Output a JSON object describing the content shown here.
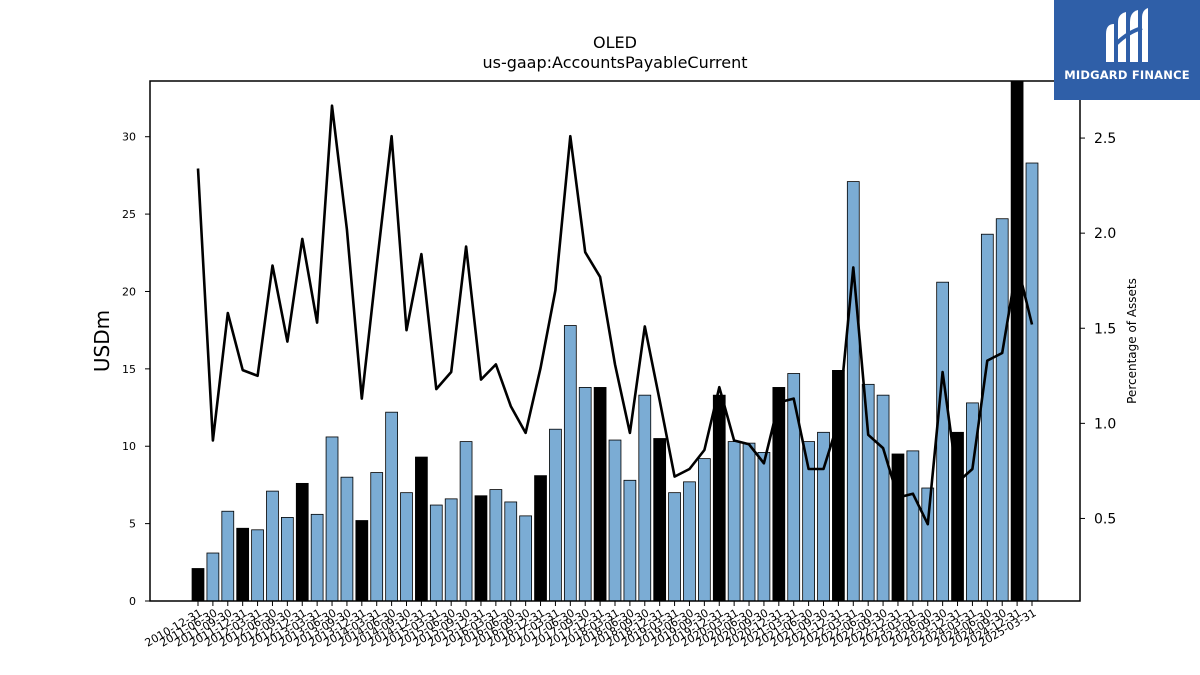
{
  "chart_data": {
    "type": "bar",
    "title": "OLED",
    "subtitle": "us-gaap:AccountsPayableCurrent",
    "ylabel": "USDm",
    "y2label": "Percentage of Assets",
    "ylim": [
      0,
      33.6
    ],
    "y2lim": [
      0.066,
      2.8
    ],
    "yticks": [
      0,
      5,
      10,
      15,
      20,
      25,
      30
    ],
    "y2ticks": [
      0.5,
      1.0,
      1.5,
      2.0,
      2.5
    ],
    "colors": {
      "q4_bar": "#000000",
      "bar": "#7bacd4",
      "line": "#000000"
    },
    "categories": [
      "2010-12-31",
      "2011-06-30",
      "2011-09-30",
      "2011-12-31",
      "2012-03-31",
      "2012-06-30",
      "2012-09-30",
      "2012-12-31",
      "2013-03-31",
      "2013-06-30",
      "2013-09-30",
      "2013-12-31",
      "2014-03-31",
      "2014-06-30",
      "2014-09-30",
      "2014-12-31",
      "2015-03-31",
      "2015-06-30",
      "2015-09-30",
      "2015-12-31",
      "2016-03-31",
      "2016-06-30",
      "2016-09-30",
      "2016-12-31",
      "2017-03-31",
      "2017-06-30",
      "2017-09-30",
      "2017-12-31",
      "2018-03-31",
      "2018-06-30",
      "2018-09-30",
      "2018-12-31",
      "2019-03-31",
      "2019-06-30",
      "2019-09-30",
      "2019-12-31",
      "2020-03-31",
      "2020-06-30",
      "2020-09-30",
      "2020-12-31",
      "2021-03-31",
      "2021-06-30",
      "2021-09-30",
      "2021-12-31",
      "2022-03-31",
      "2022-06-30",
      "2022-09-30",
      "2022-12-31",
      "2023-03-31",
      "2023-06-30",
      "2023-09-30",
      "2023-12-31",
      "2024-03-31",
      "2024-06-30",
      "2024-09-30",
      "2024-12-31",
      "2025-03-31"
    ],
    "series": [
      {
        "kind": "bar",
        "values": [
          2.1,
          3.1,
          5.8,
          4.7,
          4.6,
          7.1,
          5.4,
          7.6,
          5.6,
          10.6,
          8.0,
          5.2,
          8.3,
          12.2,
          7.0,
          9.3,
          6.2,
          6.6,
          10.3,
          6.8,
          7.2,
          6.4,
          5.5,
          8.1,
          11.1,
          17.8,
          13.8,
          13.8,
          10.4,
          7.8,
          13.3,
          10.5,
          7.0,
          7.7,
          9.2,
          13.3,
          10.3,
          10.2,
          9.6,
          13.8,
          14.7,
          10.3,
          10.9,
          14.9,
          27.1,
          14.0,
          13.3,
          9.5,
          9.7,
          7.3,
          20.6,
          10.9,
          12.8,
          23.7,
          24.7,
          33.6,
          28.3
        ],
        "q4": [
          true,
          false,
          false,
          true,
          false,
          false,
          false,
          true,
          false,
          false,
          false,
          true,
          false,
          false,
          false,
          true,
          false,
          false,
          false,
          true,
          false,
          false,
          false,
          true,
          false,
          false,
          false,
          true,
          false,
          false,
          false,
          true,
          false,
          false,
          false,
          true,
          false,
          false,
          false,
          true,
          false,
          false,
          false,
          true,
          false,
          false,
          false,
          true,
          false,
          false,
          false,
          true,
          false,
          false,
          false,
          true,
          false
        ]
      },
      {
        "kind": "line",
        "axis": "right",
        "values": [
          2.34,
          0.91,
          1.58,
          1.28,
          1.25,
          1.83,
          1.43,
          1.97,
          1.53,
          2.67,
          2.02,
          1.13,
          1.83,
          2.51,
          1.49,
          1.89,
          1.18,
          1.27,
          1.93,
          1.23,
          1.31,
          1.09,
          0.95,
          1.29,
          1.7,
          2.51,
          1.9,
          1.77,
          1.31,
          0.95,
          1.51,
          1.12,
          0.72,
          0.76,
          0.86,
          1.19,
          0.91,
          0.89,
          0.79,
          1.11,
          1.13,
          0.76,
          0.76,
          1.01,
          1.82,
          0.94,
          0.87,
          0.61,
          0.63,
          0.47,
          1.27,
          0.69,
          0.76,
          1.33,
          1.37,
          1.84,
          1.52
        ]
      }
    ]
  },
  "logo": {
    "text": "MIDGARD FINANCE"
  }
}
